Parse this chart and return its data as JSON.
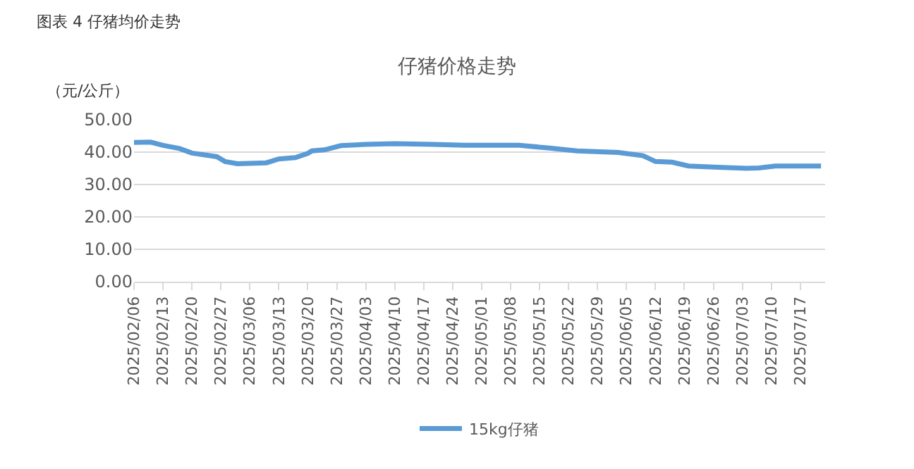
{
  "chart_data": {
    "type": "line",
    "title": "仔猪价格走势",
    "ylabel": "（元/公斤）",
    "annotations": [
      "图表 4 仔猪均价走势"
    ],
    "x": [
      "2025-02-06",
      "2025-02-10",
      "2025-02-13",
      "2025-02-17",
      "2025-02-20",
      "2025-02-26",
      "2025-02-28",
      "2025-03-03",
      "2025-03-10",
      "2025-03-13",
      "2025-03-17",
      "2025-03-20",
      "2025-03-21",
      "2025-03-24",
      "2025-03-28",
      "2025-04-03",
      "2025-04-10",
      "2025-04-19",
      "2025-04-27",
      "2025-05-10",
      "2025-05-17",
      "2025-05-24",
      "2025-06-03",
      "2025-06-09",
      "2025-06-12",
      "2025-06-16",
      "2025-06-20",
      "2025-06-27",
      "2025-07-04",
      "2025-07-07",
      "2025-07-11",
      "2025-07-22"
    ],
    "series": [
      {
        "name": "15kg仔猪",
        "color": "#5b9bd5",
        "values": [
          43.0,
          43.1,
          42.1,
          41.1,
          39.7,
          38.6,
          37.1,
          36.4,
          36.7,
          37.9,
          38.3,
          39.6,
          40.4,
          40.7,
          42.0,
          42.4,
          42.6,
          42.4,
          42.1,
          42.1,
          41.3,
          40.4,
          39.9,
          38.9,
          37.1,
          36.9,
          35.7,
          35.3,
          35.0,
          35.1,
          35.7,
          35.7
        ]
      }
    ],
    "xlim": [
      "2025-02-06",
      "2025-07-23"
    ],
    "xticks": [
      {
        "value": "2025-02-06",
        "label": "2025/02/06"
      },
      {
        "value": "2025-02-13",
        "label": "2025/02/13"
      },
      {
        "value": "2025-02-20",
        "label": "2025/02/20"
      },
      {
        "value": "2025-02-27",
        "label": "2025/02/27"
      },
      {
        "value": "2025-03-06",
        "label": "2025/03/06"
      },
      {
        "value": "2025-03-13",
        "label": "2025/03/13"
      },
      {
        "value": "2025-03-20",
        "label": "2025/03/20"
      },
      {
        "value": "2025-03-27",
        "label": "2025/03/27"
      },
      {
        "value": "2025-04-03",
        "label": "2025/04/03"
      },
      {
        "value": "2025-04-10",
        "label": "2025/04/10"
      },
      {
        "value": "2025-04-17",
        "label": "2025/04/17"
      },
      {
        "value": "2025-04-24",
        "label": "2025/04/24"
      },
      {
        "value": "2025-05-01",
        "label": "2025/05/01"
      },
      {
        "value": "2025-05-08",
        "label": "2025/05/08"
      },
      {
        "value": "2025-05-15",
        "label": "2025/05/15"
      },
      {
        "value": "2025-05-22",
        "label": "2025/05/22"
      },
      {
        "value": "2025-05-29",
        "label": "2025/05/29"
      },
      {
        "value": "2025-06-05",
        "label": "2025/06/05"
      },
      {
        "value": "2025-06-12",
        "label": "2025/06/12"
      },
      {
        "value": "2025-06-19",
        "label": "2025/06/19"
      },
      {
        "value": "2025-06-26",
        "label": "2025/06/26"
      },
      {
        "value": "2025-07-03",
        "label": "2025/07/03"
      },
      {
        "value": "2025-07-10",
        "label": "2025/07/10"
      },
      {
        "value": "2025-07-17",
        "label": "2025/07/17"
      }
    ],
    "ylim": [
      0,
      50
    ],
    "yticks": [
      {
        "value": 0,
        "label": "0.00"
      },
      {
        "value": 10,
        "label": "10.00"
      },
      {
        "value": 20,
        "label": "20.00"
      },
      {
        "value": 30,
        "label": "30.00"
      },
      {
        "value": 40,
        "label": "40.00"
      },
      {
        "value": 50,
        "label": "50.00"
      }
    ],
    "grid": "y",
    "legend": "bottom",
    "marker": "none",
    "line_style": "solid"
  }
}
